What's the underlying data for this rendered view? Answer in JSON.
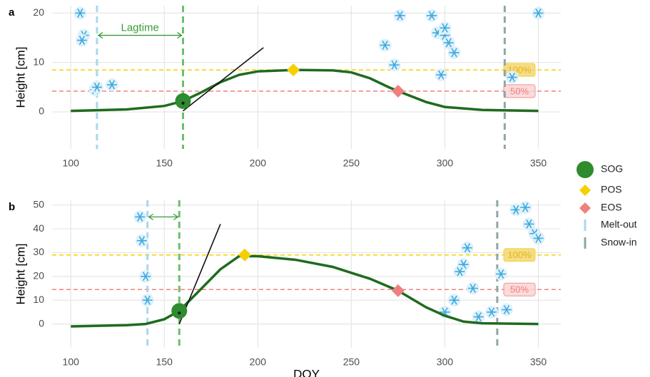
{
  "chart_data": [
    {
      "type": "line",
      "label": "a",
      "ylabel": "Height [cm]",
      "x": [
        100,
        130,
        150,
        160,
        170,
        180,
        190,
        200,
        220,
        240,
        250,
        260,
        270,
        275,
        290,
        300,
        320,
        350
      ],
      "values": [
        0.2,
        0.5,
        1.2,
        2.2,
        4,
        6,
        7.5,
        8.2,
        8.5,
        8.4,
        8,
        6.8,
        5,
        4.2,
        2,
        1,
        0.4,
        0.2
      ],
      "color": "#1f6b1f",
      "xlim": [
        90,
        362
      ],
      "ylim": [
        -7.5,
        21.5
      ],
      "xticks": [
        100,
        150,
        200,
        250,
        300,
        350
      ],
      "yticks": [
        0,
        10,
        20
      ],
      "sog": [
        160,
        2.2
      ],
      "pos": [
        219,
        8.5
      ],
      "eos": [
        275,
        4.2
      ],
      "melt_out": 114,
      "snow_in": 332,
      "lagtime": "Lagtime",
      "tangent": [
        [
          160,
          0.2
        ],
        [
          203,
          13
        ]
      ],
      "thresholds": [
        8.5,
        4.2
      ],
      "threshold_labels": [
        "100%",
        "50%"
      ],
      "snow_x": [
        105,
        107,
        106,
        113,
        114,
        122,
        268,
        273,
        276,
        293,
        296,
        300,
        300,
        302,
        305,
        298,
        336,
        350
      ],
      "snow_y": [
        20,
        15.5,
        14.5,
        4.5,
        5,
        5.5,
        13.5,
        9.5,
        19.5,
        19.5,
        16,
        15.5,
        17,
        14,
        12,
        7.5,
        7,
        20
      ]
    },
    {
      "type": "line",
      "label": "b",
      "ylabel": "Height [cm]",
      "xlabel": "DOY",
      "x": [
        100,
        130,
        140,
        150,
        158,
        170,
        180,
        190,
        200,
        220,
        240,
        260,
        275,
        290,
        300,
        310,
        320,
        350
      ],
      "values": [
        -1,
        -0.5,
        0,
        2,
        5.5,
        15,
        23,
        28.5,
        28.5,
        27,
        24,
        19,
        14,
        7,
        3.5,
        1,
        0.3,
        0
      ],
      "color": "#1f6b1f",
      "xlim": [
        90,
        362
      ],
      "ylim": [
        -10,
        52
      ],
      "xticks": [
        100,
        150,
        200,
        250,
        300,
        350
      ],
      "yticks": [
        0,
        10,
        20,
        30,
        40,
        50
      ],
      "sog": [
        158,
        5.5
      ],
      "pos": [
        193,
        29
      ],
      "eos": [
        275,
        14
      ],
      "melt_out": 141,
      "snow_in": 328,
      "tangent": [
        [
          158,
          0
        ],
        [
          180,
          42
        ]
      ],
      "thresholds": [
        29,
        14.5
      ],
      "threshold_labels": [
        "100%",
        "50%"
      ],
      "snow_x": [
        137,
        138,
        140,
        141,
        338,
        343,
        345,
        348,
        350,
        312,
        310,
        308,
        315,
        305,
        300,
        330,
        333,
        325,
        318
      ],
      "snow_y": [
        45,
        35,
        20,
        10,
        48,
        49,
        42,
        38,
        36,
        32,
        25,
        22,
        15,
        10,
        5,
        21,
        6,
        5,
        3
      ]
    }
  ],
  "legend": [
    {
      "name": "SOG",
      "color": "#2e8b2e",
      "marker": "circle"
    },
    {
      "name": "POS",
      "color": "#f5d000",
      "marker": "diamond"
    },
    {
      "name": "EOS",
      "color": "#f08080",
      "marker": "diamond"
    },
    {
      "name": "Melt-out",
      "color": "#a8d8ea",
      "marker": "line"
    },
    {
      "name": "Snow-in",
      "color": "#8fa6a6",
      "marker": "line"
    }
  ]
}
